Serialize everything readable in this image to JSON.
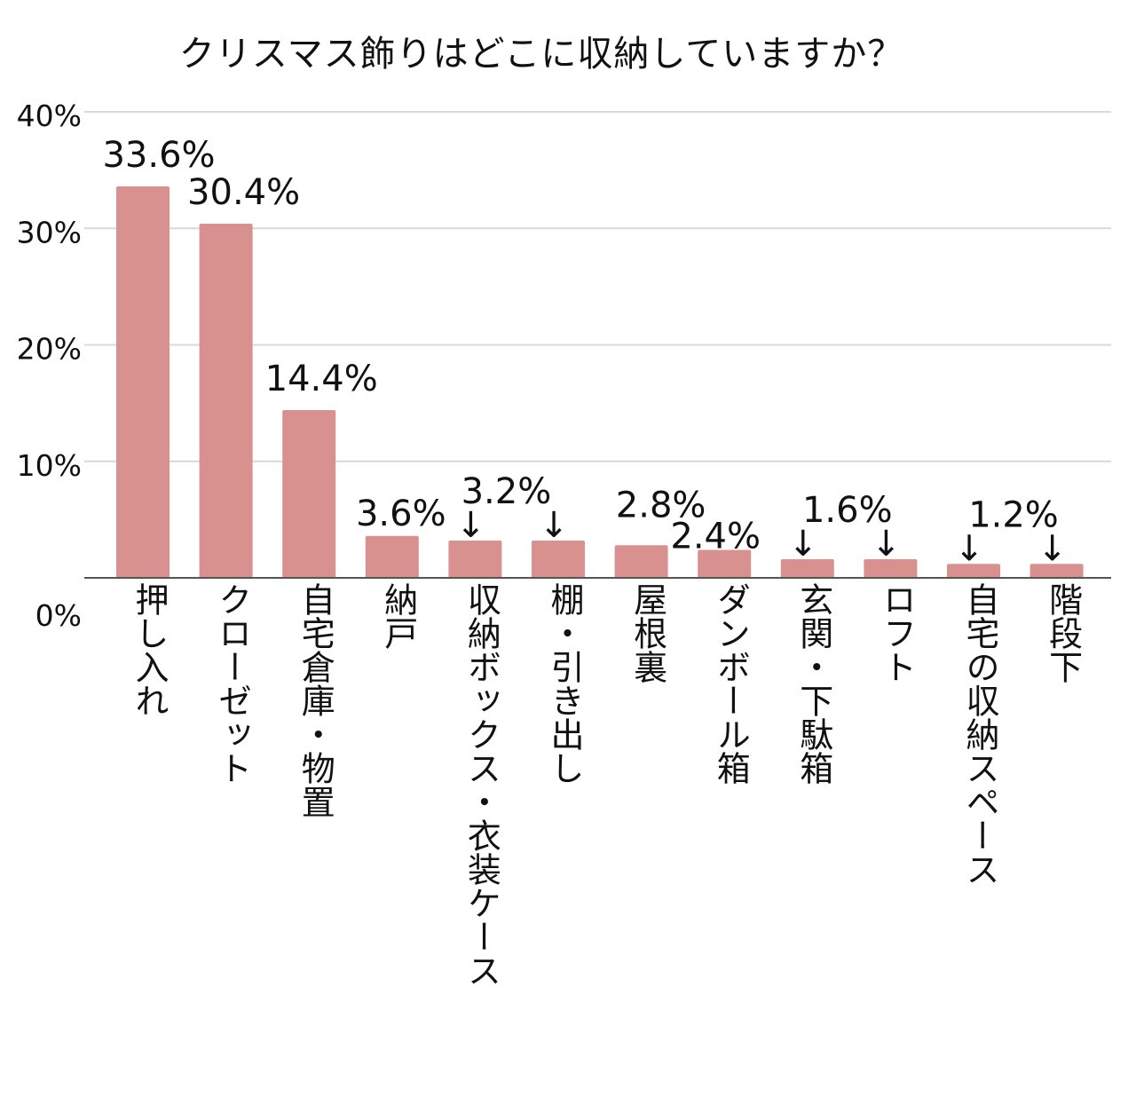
{
  "chart_data": {
    "type": "bar",
    "title": "クリスマス飾りはどこに収納していますか？",
    "xlabel": "",
    "ylabel": "",
    "ylim": [
      0,
      40
    ],
    "yticks": [
      "0%",
      "10%",
      "20%",
      "30%",
      "40%"
    ],
    "grid": true,
    "bar_color": "#d8918f",
    "categories": [
      "押し入れ",
      "クローゼット",
      "自宅倉庫・物置",
      "納戸",
      "収納ボックス・衣装ケース",
      "棚・引き出し",
      "屋根裏",
      "ダンボール箱",
      "玄関・下駄箱",
      "ロフト",
      "自宅の収納スペース",
      "階段下"
    ],
    "values": [
      33.6,
      30.4,
      14.4,
      3.6,
      3.2,
      3.2,
      2.8,
      2.4,
      1.6,
      1.6,
      1.2,
      1.2
    ],
    "labels": [
      "33.6%",
      "30.4%",
      "14.4%",
      "3.6%",
      "3.2%",
      "",
      "2.8%",
      "2.4%",
      "1.6%",
      "",
      "1.2%",
      ""
    ],
    "arrow_marker": "↓"
  }
}
